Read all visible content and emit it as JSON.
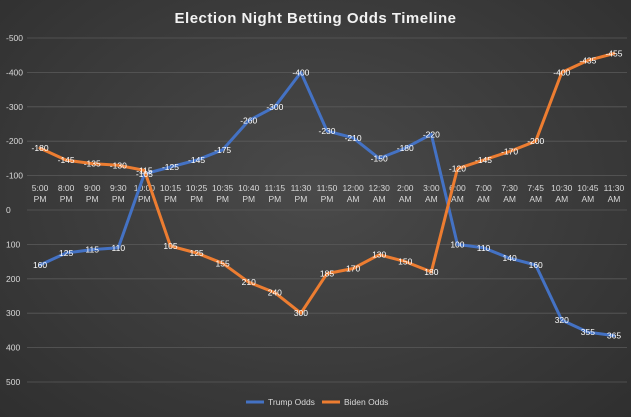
{
  "chart_data": {
    "type": "line",
    "title": "Election Night Betting Odds Timeline",
    "xlabel": "",
    "ylabel": "",
    "ylim": [
      -500,
      500
    ],
    "y_axis_reversed": true,
    "yticks": [
      "-500",
      "-400",
      "-300",
      "-200",
      "-100",
      "0",
      "100",
      "200",
      "300",
      "400",
      "500"
    ],
    "ytick_values": [
      -500,
      -400,
      -300,
      -200,
      -100,
      0,
      100,
      200,
      300,
      400,
      500
    ],
    "categories": [
      [
        "5:00",
        "PM"
      ],
      [
        "8:00",
        "PM"
      ],
      [
        "9:00",
        "PM"
      ],
      [
        "9:30",
        "PM"
      ],
      [
        "10:00",
        "PM"
      ],
      [
        "10:15",
        "PM"
      ],
      [
        "10:25",
        "PM"
      ],
      [
        "10:35",
        "PM"
      ],
      [
        "10:40",
        "PM"
      ],
      [
        "11:15",
        "PM"
      ],
      [
        "11:30",
        "PM"
      ],
      [
        "11:50",
        "PM"
      ],
      [
        "12:00",
        "AM"
      ],
      [
        "12:30",
        "AM"
      ],
      [
        "2:00",
        "AM"
      ],
      [
        "3:00",
        "AM"
      ],
      [
        "6:00",
        "AM"
      ],
      [
        "7:00",
        "AM"
      ],
      [
        "7:30",
        "AM"
      ],
      [
        "7:45",
        "AM"
      ],
      [
        "10:30",
        "AM"
      ],
      [
        "10:45",
        "AM"
      ],
      [
        "11:30",
        "AM"
      ]
    ],
    "series": [
      {
        "name": "Trump Odds",
        "color": "#4472c4",
        "values": [
          160,
          125,
          115,
          110,
          -105,
          -125,
          -145,
          -175,
          -260,
          -300,
          -400,
          -230,
          -210,
          -150,
          -180,
          -220,
          100,
          110,
          140,
          160,
          320,
          355,
          365
        ],
        "labels": [
          "160",
          "125",
          "115",
          "110",
          "-105",
          "-125",
          "-145",
          "-175",
          "-260",
          "-300",
          "-400",
          "-230",
          "-210",
          "-150",
          "-180",
          "-220",
          "100",
          "110",
          "140",
          "160",
          "320",
          "355",
          "365"
        ]
      },
      {
        "name": "Biden Odds",
        "color": "#ed7d31",
        "values": [
          -180,
          -145,
          -135,
          -130,
          -115,
          105,
          125,
          155,
          210,
          240,
          300,
          185,
          170,
          130,
          150,
          180,
          -120,
          -145,
          -170,
          -200,
          -400,
          -435,
          -455
        ],
        "labels": [
          "-180",
          "-145",
          "-135",
          "-130",
          "-115",
          "105",
          "125",
          "155",
          "210",
          "240",
          "300",
          "185",
          "170",
          "130",
          "150",
          "180",
          "-120",
          "-145",
          "-170",
          "-200",
          "-400",
          "-435",
          "-455"
        ]
      }
    ],
    "grid": true,
    "legend": "bottom"
  }
}
